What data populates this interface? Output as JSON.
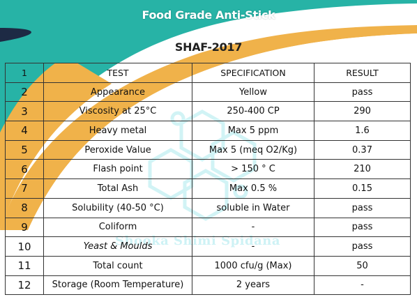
{
  "header": {
    "title": "Food Grade Anti-Stick",
    "product": "SHAF-2017"
  },
  "watermark": "Shooka Shimi Spidana",
  "table": {
    "columns": [
      "1",
      "TEST",
      "SPECIFICATION",
      "RESULT"
    ],
    "rows": [
      {
        "no": "2",
        "test": "Appearance",
        "spec": "Yellow",
        "result": "pass"
      },
      {
        "no": "3",
        "test": "Viscosity at 25°C",
        "spec": "250-400 CP",
        "result": "290"
      },
      {
        "no": "4",
        "test": "Heavy metal",
        "spec": "Max 5 ppm",
        "result": "1.6"
      },
      {
        "no": "5",
        "test": "Peroxide Value",
        "spec": "Max 5 (meq O2/Kg)",
        "result": "0.37"
      },
      {
        "no": "6",
        "test": "Flash point",
        "spec": "> 150 ° C",
        "result": "210"
      },
      {
        "no": "7",
        "test": "Total Ash",
        "spec": "Max 0.5 %",
        "result": "0.15"
      },
      {
        "no": "8",
        "test": "Solubility (40-50 °C)",
        "spec": "soluble  in Water",
        "result": "pass"
      },
      {
        "no": "9",
        "test": "Coliform",
        "spec": "-",
        "result": "pass"
      },
      {
        "no": "10",
        "test": "Yeast & Moulds",
        "spec": "-",
        "result": "pass"
      },
      {
        "no": "11",
        "test": "Total count",
        "spec": "1000 cfu/g (Max)",
        "result": "50"
      },
      {
        "no": "12",
        "test": "Storage (Room Temperature)",
        "spec": "2 years",
        "result": "-"
      }
    ]
  },
  "colors": {
    "navy": "#1d2a44",
    "teal": "#27b3a6",
    "orange": "#f0b24a",
    "watermark": "#c9f1f4"
  }
}
